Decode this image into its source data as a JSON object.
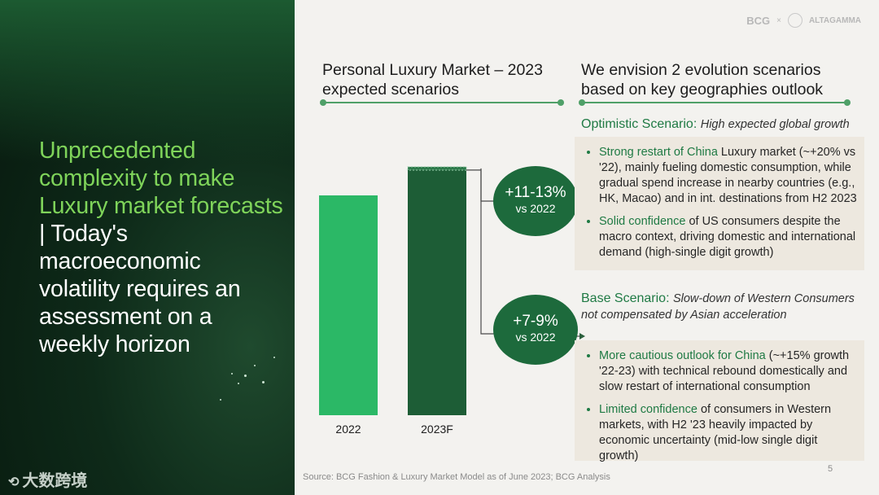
{
  "headline": {
    "highlight": "Unprecedented complexity to make Luxury market forecasts",
    "separator": " | ",
    "rest": "Today's macroeconomic volatility requires an assessment on a weekly horizon"
  },
  "logos": {
    "brand1": "BCG",
    "x": "×",
    "brand2": "ALTAGAMMA"
  },
  "watermark": "大数跨境",
  "left_column": {
    "title_line1": "Personal Luxury Market – 2023",
    "title_line2": "expected scenarios"
  },
  "right_column": {
    "title_line1": "We envision 2 evolution scenarios",
    "title_line2": "based on key geographies outlook"
  },
  "chart_data": {
    "type": "bar",
    "categories": [
      "2022",
      "2023F"
    ],
    "values": [
      100,
      111.5
    ],
    "range_high": 113,
    "colors": [
      "#2bb866",
      "#1d5d36"
    ]
  },
  "badges": [
    {
      "main": "+11-13%",
      "sub": "vs 2022"
    },
    {
      "main": "+7-9%",
      "sub": "vs 2022"
    }
  ],
  "optimistic": {
    "name": "Optimistic Scenario:",
    "desc": "High expected global growth",
    "bullets": [
      {
        "hi": "Strong restart of China",
        "text": " Luxury market (~+20% vs '22), mainly fueling domestic consumption, while gradual spend increase in nearby countries (e.g., HK, Macao) and in int. destinations from H2 2023"
      },
      {
        "hi": "Solid confidence",
        "text": " of US consumers despite the macro context, driving domestic and international demand (high-single digit growth)"
      }
    ]
  },
  "base": {
    "name": "Base Scenario:",
    "desc": "Slow-down of Western Consumers not compensated by Asian acceleration",
    "bullets": [
      {
        "hi": "More cautious outlook for China",
        "text": " (~+15% growth '22-23) with technical rebound domestically and slow restart of international consumption"
      },
      {
        "hi": "Limited confidence",
        "text": " of consumers in Western markets, with H2 '23 heavily impacted by economic uncertainty (mid-low single digit growth)"
      }
    ]
  },
  "footer": {
    "source": "Source: BCG Fashion & Luxury Market Model as of June 2023; BCG Analysis",
    "page": "5"
  }
}
